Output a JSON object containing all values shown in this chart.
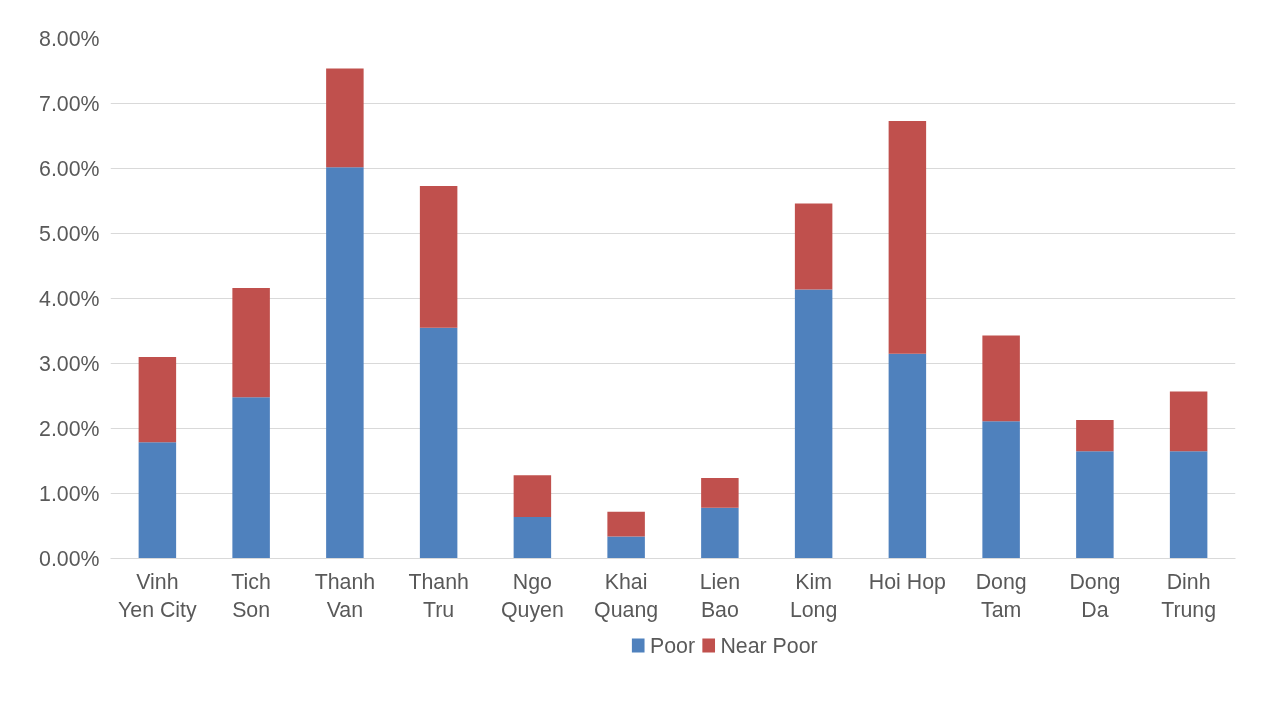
{
  "chart_data": {
    "type": "bar",
    "stacked": true,
    "categories": [
      "Vinh\nYen City",
      "Tich\nSon",
      "Thanh\nVan",
      "Thanh\nTru",
      "Ngo\nQuyen",
      "Khai\nQuang",
      "Lien\nBao",
      "Kim\nLong",
      "Hoi Hop",
      "Dong\nTam",
      "Dong\nDa",
      "Dinh\nTrung"
    ],
    "series": [
      {
        "name": "Poor",
        "color": "#4f81bd",
        "values": [
          1.79,
          2.48,
          6.02,
          3.55,
          0.64,
          0.34,
          0.78,
          4.14,
          3.15,
          2.11,
          1.65,
          1.65
        ]
      },
      {
        "name": "Near Poor",
        "color": "#c0504d",
        "values": [
          1.31,
          1.68,
          1.52,
          2.18,
          0.64,
          0.38,
          0.46,
          1.32,
          3.58,
          1.32,
          0.48,
          0.92
        ]
      }
    ],
    "ylim": [
      0,
      8
    ],
    "yticks": [
      {
        "value": 0,
        "label": "0.00%"
      },
      {
        "value": 1,
        "label": "1.00%"
      },
      {
        "value": 2,
        "label": "2.00%"
      },
      {
        "value": 3,
        "label": "3.00%"
      },
      {
        "value": 4,
        "label": "4.00%"
      },
      {
        "value": 5,
        "label": "5.00%"
      },
      {
        "value": 6,
        "label": "6.00%"
      },
      {
        "value": 7,
        "label": "7.00%"
      },
      {
        "value": 8,
        "label": "8.00%"
      }
    ],
    "grid": "y",
    "legend": "bottom"
  }
}
